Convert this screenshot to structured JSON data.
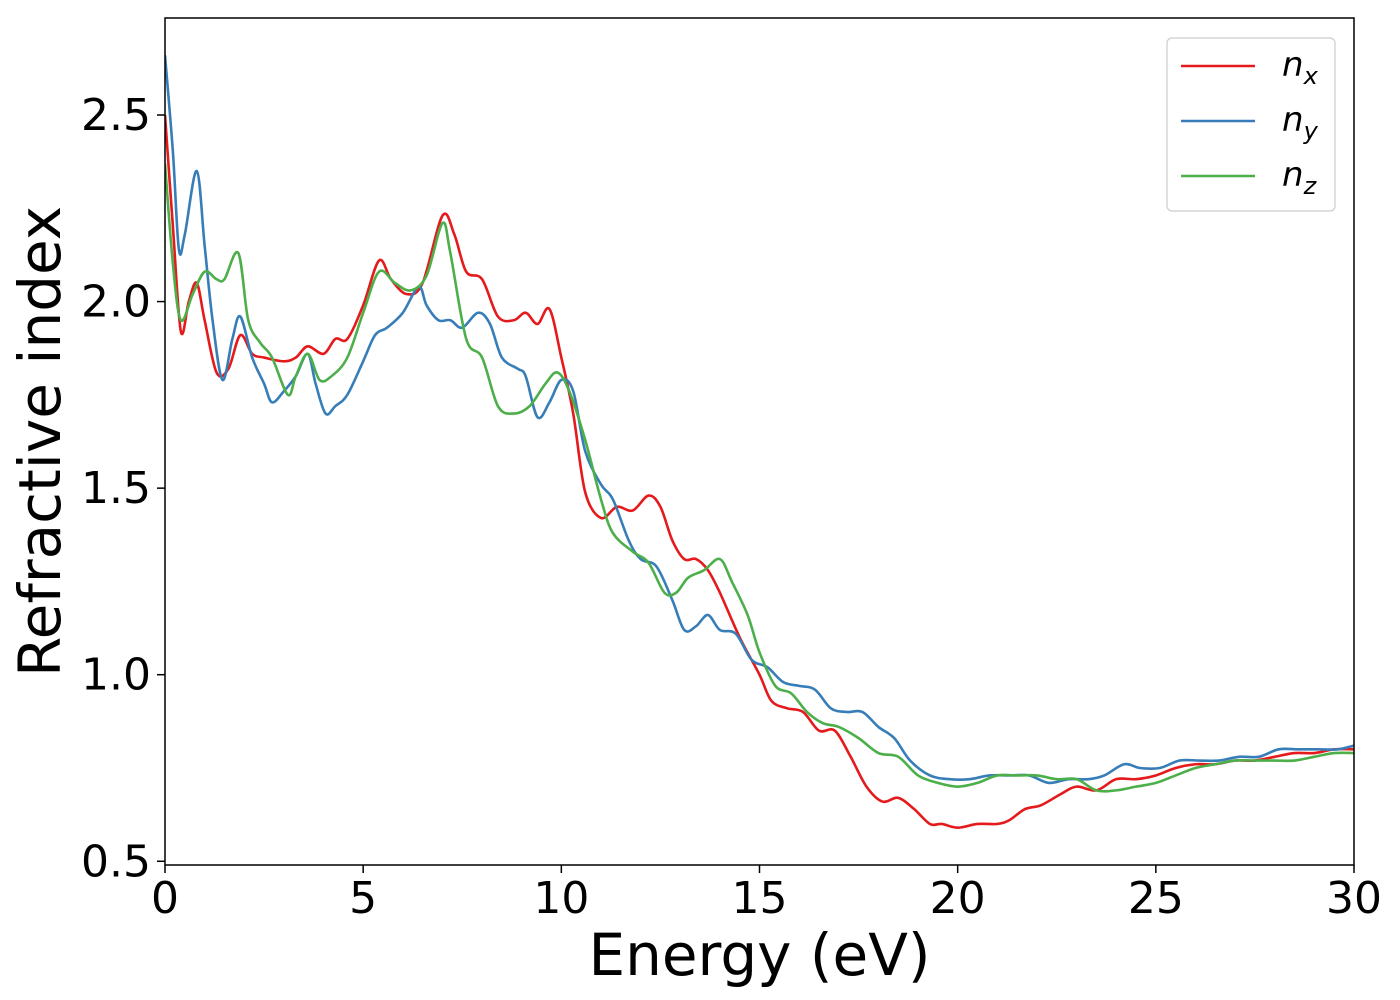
{
  "chart_data": {
    "type": "line",
    "title": "",
    "xlabel": "Energy (eV)",
    "ylabel": "Refractive index",
    "xlim": [
      0,
      30
    ],
    "ylim": [
      0.49,
      2.76
    ],
    "xticks": [
      "0",
      "5",
      "10",
      "15",
      "20",
      "25",
      "30"
    ],
    "yticks": [
      "0.5",
      "1.0",
      "1.5",
      "2.0",
      "2.5"
    ],
    "grid": false,
    "legend_position": "top-right",
    "colors": {
      "nx": "#e41a1c",
      "ny": "#377eb8",
      "nz": "#4daf4a"
    },
    "series": [
      {
        "name": "n_x",
        "legend_main": "n",
        "legend_sub": "x",
        "color": "#e41a1c",
        "points": [
          [
            0,
            2.5
          ],
          [
            0.2,
            2.2
          ],
          [
            0.4,
            1.92
          ],
          [
            0.6,
            2.0
          ],
          [
            0.8,
            2.05
          ],
          [
            1.0,
            1.95
          ],
          [
            1.3,
            1.81
          ],
          [
            1.6,
            1.82
          ],
          [
            1.9,
            1.91
          ],
          [
            2.2,
            1.86
          ],
          [
            2.5,
            1.85
          ],
          [
            3.0,
            1.84
          ],
          [
            3.3,
            1.85
          ],
          [
            3.6,
            1.88
          ],
          [
            4.0,
            1.86
          ],
          [
            4.3,
            1.9
          ],
          [
            4.6,
            1.9
          ],
          [
            5.0,
            1.99
          ],
          [
            5.4,
            2.11
          ],
          [
            5.7,
            2.06
          ],
          [
            6.1,
            2.02
          ],
          [
            6.5,
            2.05
          ],
          [
            7.0,
            2.23
          ],
          [
            7.3,
            2.18
          ],
          [
            7.6,
            2.08
          ],
          [
            8.0,
            2.06
          ],
          [
            8.4,
            1.96
          ],
          [
            8.8,
            1.95
          ],
          [
            9.1,
            1.97
          ],
          [
            9.4,
            1.94
          ],
          [
            9.7,
            1.98
          ],
          [
            10.0,
            1.85
          ],
          [
            10.3,
            1.7
          ],
          [
            10.6,
            1.49
          ],
          [
            11.0,
            1.42
          ],
          [
            11.4,
            1.45
          ],
          [
            11.8,
            1.44
          ],
          [
            12.2,
            1.48
          ],
          [
            12.5,
            1.45
          ],
          [
            12.8,
            1.36
          ],
          [
            13.1,
            1.31
          ],
          [
            13.4,
            1.31
          ],
          [
            13.7,
            1.28
          ],
          [
            14.0,
            1.22
          ],
          [
            14.5,
            1.1
          ],
          [
            15.0,
            1.0
          ],
          [
            15.3,
            0.93
          ],
          [
            15.7,
            0.91
          ],
          [
            16.1,
            0.9
          ],
          [
            16.5,
            0.85
          ],
          [
            16.9,
            0.85
          ],
          [
            17.3,
            0.78
          ],
          [
            17.7,
            0.7
          ],
          [
            18.1,
            0.66
          ],
          [
            18.5,
            0.67
          ],
          [
            18.9,
            0.64
          ],
          [
            19.3,
            0.6
          ],
          [
            19.6,
            0.6
          ],
          [
            20.0,
            0.59
          ],
          [
            20.5,
            0.6
          ],
          [
            21.0,
            0.6
          ],
          [
            21.3,
            0.61
          ],
          [
            21.7,
            0.64
          ],
          [
            22.1,
            0.65
          ],
          [
            22.6,
            0.68
          ],
          [
            23.0,
            0.7
          ],
          [
            23.5,
            0.69
          ],
          [
            24.0,
            0.72
          ],
          [
            24.5,
            0.72
          ],
          [
            25.0,
            0.73
          ],
          [
            25.5,
            0.75
          ],
          [
            26.0,
            0.76
          ],
          [
            26.5,
            0.76
          ],
          [
            27.0,
            0.77
          ],
          [
            27.5,
            0.77
          ],
          [
            28.0,
            0.78
          ],
          [
            28.5,
            0.79
          ],
          [
            29.0,
            0.79
          ],
          [
            29.5,
            0.8
          ],
          [
            30.0,
            0.8
          ]
        ]
      },
      {
        "name": "n_y",
        "legend_main": "n",
        "legend_sub": "y",
        "color": "#377eb8",
        "points": [
          [
            0,
            2.66
          ],
          [
            0.2,
            2.4
          ],
          [
            0.35,
            2.14
          ],
          [
            0.5,
            2.18
          ],
          [
            0.8,
            2.35
          ],
          [
            1.0,
            2.15
          ],
          [
            1.2,
            1.95
          ],
          [
            1.45,
            1.79
          ],
          [
            1.7,
            1.9
          ],
          [
            1.9,
            1.96
          ],
          [
            2.2,
            1.85
          ],
          [
            2.5,
            1.78
          ],
          [
            2.7,
            1.73
          ],
          [
            3.0,
            1.76
          ],
          [
            3.3,
            1.8
          ],
          [
            3.6,
            1.86
          ],
          [
            3.8,
            1.78
          ],
          [
            4.05,
            1.7
          ],
          [
            4.3,
            1.72
          ],
          [
            4.6,
            1.75
          ],
          [
            5.0,
            1.84
          ],
          [
            5.3,
            1.91
          ],
          [
            5.6,
            1.93
          ],
          [
            6.0,
            1.97
          ],
          [
            6.4,
            2.04
          ],
          [
            6.6,
            1.99
          ],
          [
            6.9,
            1.95
          ],
          [
            7.2,
            1.95
          ],
          [
            7.5,
            1.93
          ],
          [
            7.9,
            1.97
          ],
          [
            8.2,
            1.94
          ],
          [
            8.5,
            1.85
          ],
          [
            8.9,
            1.82
          ],
          [
            9.1,
            1.8
          ],
          [
            9.4,
            1.69
          ],
          [
            9.7,
            1.73
          ],
          [
            10.0,
            1.79
          ],
          [
            10.3,
            1.76
          ],
          [
            10.6,
            1.6
          ],
          [
            11.0,
            1.51
          ],
          [
            11.3,
            1.47
          ],
          [
            11.7,
            1.36
          ],
          [
            12.0,
            1.31
          ],
          [
            12.4,
            1.29
          ],
          [
            12.8,
            1.2
          ],
          [
            13.1,
            1.12
          ],
          [
            13.4,
            1.13
          ],
          [
            13.7,
            1.16
          ],
          [
            14.0,
            1.12
          ],
          [
            14.4,
            1.11
          ],
          [
            14.8,
            1.04
          ],
          [
            15.2,
            1.02
          ],
          [
            15.6,
            0.98
          ],
          [
            16.0,
            0.97
          ],
          [
            16.4,
            0.96
          ],
          [
            16.8,
            0.91
          ],
          [
            17.2,
            0.9
          ],
          [
            17.6,
            0.9
          ],
          [
            18.0,
            0.86
          ],
          [
            18.4,
            0.83
          ],
          [
            18.8,
            0.77
          ],
          [
            19.3,
            0.73
          ],
          [
            19.8,
            0.72
          ],
          [
            20.3,
            0.72
          ],
          [
            20.8,
            0.73
          ],
          [
            21.3,
            0.73
          ],
          [
            21.8,
            0.73
          ],
          [
            22.3,
            0.71
          ],
          [
            22.8,
            0.72
          ],
          [
            23.3,
            0.72
          ],
          [
            23.7,
            0.73
          ],
          [
            24.2,
            0.76
          ],
          [
            24.6,
            0.75
          ],
          [
            25.1,
            0.75
          ],
          [
            25.6,
            0.77
          ],
          [
            26.1,
            0.77
          ],
          [
            26.6,
            0.77
          ],
          [
            27.1,
            0.78
          ],
          [
            27.6,
            0.78
          ],
          [
            28.1,
            0.8
          ],
          [
            28.6,
            0.8
          ],
          [
            29.1,
            0.8
          ],
          [
            29.6,
            0.8
          ],
          [
            30.0,
            0.81
          ]
        ]
      },
      {
        "name": "n_z",
        "legend_main": "n",
        "legend_sub": "z",
        "color": "#4daf4a",
        "points": [
          [
            0,
            2.37
          ],
          [
            0.2,
            2.1
          ],
          [
            0.4,
            1.95
          ],
          [
            0.7,
            2.02
          ],
          [
            1.0,
            2.08
          ],
          [
            1.3,
            2.06
          ],
          [
            1.5,
            2.06
          ],
          [
            1.85,
            2.13
          ],
          [
            2.1,
            1.95
          ],
          [
            2.4,
            1.89
          ],
          [
            2.7,
            1.85
          ],
          [
            3.1,
            1.75
          ],
          [
            3.3,
            1.8
          ],
          [
            3.6,
            1.86
          ],
          [
            3.9,
            1.79
          ],
          [
            4.2,
            1.8
          ],
          [
            4.6,
            1.85
          ],
          [
            5.0,
            1.97
          ],
          [
            5.4,
            2.08
          ],
          [
            5.8,
            2.05
          ],
          [
            6.2,
            2.03
          ],
          [
            6.6,
            2.07
          ],
          [
            7.0,
            2.21
          ],
          [
            7.2,
            2.13
          ],
          [
            7.6,
            1.9
          ],
          [
            8.0,
            1.85
          ],
          [
            8.4,
            1.72
          ],
          [
            8.8,
            1.7
          ],
          [
            9.2,
            1.72
          ],
          [
            9.6,
            1.78
          ],
          [
            9.9,
            1.81
          ],
          [
            10.2,
            1.76
          ],
          [
            10.6,
            1.63
          ],
          [
            11.0,
            1.47
          ],
          [
            11.3,
            1.38
          ],
          [
            11.8,
            1.33
          ],
          [
            12.2,
            1.3
          ],
          [
            12.6,
            1.22
          ],
          [
            12.9,
            1.22
          ],
          [
            13.2,
            1.26
          ],
          [
            13.6,
            1.28
          ],
          [
            14.0,
            1.31
          ],
          [
            14.3,
            1.25
          ],
          [
            14.7,
            1.16
          ],
          [
            15.0,
            1.06
          ],
          [
            15.4,
            0.97
          ],
          [
            15.8,
            0.95
          ],
          [
            16.2,
            0.9
          ],
          [
            16.6,
            0.87
          ],
          [
            17.0,
            0.86
          ],
          [
            17.5,
            0.83
          ],
          [
            18.0,
            0.79
          ],
          [
            18.5,
            0.78
          ],
          [
            19.0,
            0.73
          ],
          [
            19.5,
            0.71
          ],
          [
            20.0,
            0.7
          ],
          [
            20.5,
            0.71
          ],
          [
            21.0,
            0.73
          ],
          [
            21.5,
            0.73
          ],
          [
            22.0,
            0.73
          ],
          [
            22.5,
            0.72
          ],
          [
            23.0,
            0.72
          ],
          [
            23.5,
            0.69
          ],
          [
            24.0,
            0.69
          ],
          [
            24.5,
            0.7
          ],
          [
            25.0,
            0.71
          ],
          [
            25.5,
            0.73
          ],
          [
            26.0,
            0.75
          ],
          [
            26.5,
            0.76
          ],
          [
            27.0,
            0.77
          ],
          [
            27.5,
            0.77
          ],
          [
            28.0,
            0.77
          ],
          [
            28.5,
            0.77
          ],
          [
            29.0,
            0.78
          ],
          [
            29.5,
            0.79
          ],
          [
            30.0,
            0.79
          ]
        ]
      }
    ]
  }
}
